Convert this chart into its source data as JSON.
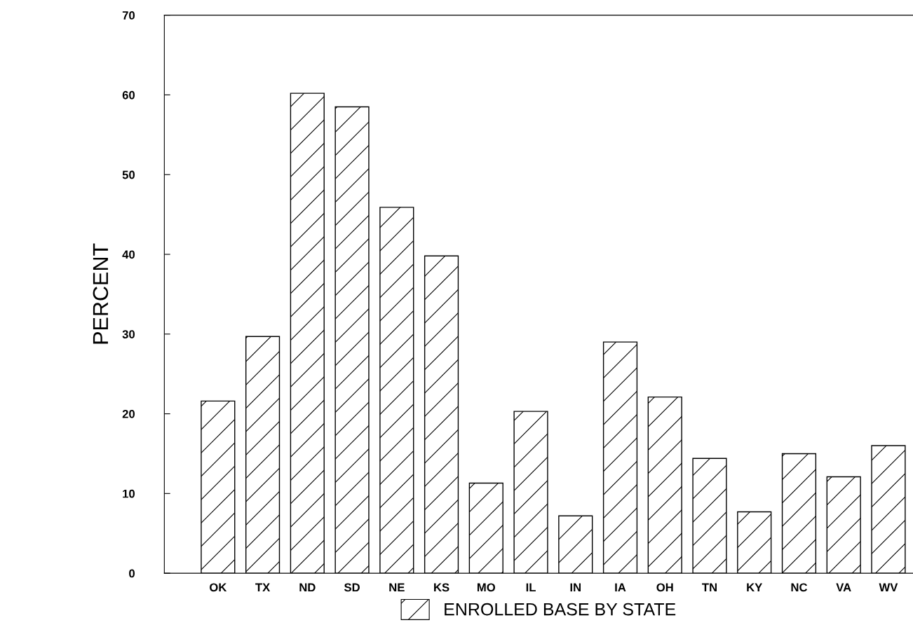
{
  "chart_data": {
    "type": "bar",
    "ylabel": "PERCENT",
    "categories": [
      "OK",
      "TX",
      "ND",
      "SD",
      "NE",
      "KS",
      "MO",
      "IL",
      "IN",
      "IA",
      "OH",
      "TN",
      "KY",
      "NC",
      "VA",
      "WV"
    ],
    "series": [
      {
        "name": "ENROLLED BASE BY STATE",
        "color": "#000000",
        "values": [
          21.6,
          29.7,
          60.2,
          58.5,
          45.9,
          39.8,
          11.3,
          20.3,
          7.2,
          29.0,
          22.1,
          14.4,
          7.7,
          15.0,
          12.1,
          16.0
        ]
      }
    ],
    "ylim": [
      0,
      70
    ],
    "yticks": [
      0,
      10,
      20,
      30,
      40,
      50,
      60,
      70
    ],
    "grid": false,
    "legend": "bottom"
  }
}
